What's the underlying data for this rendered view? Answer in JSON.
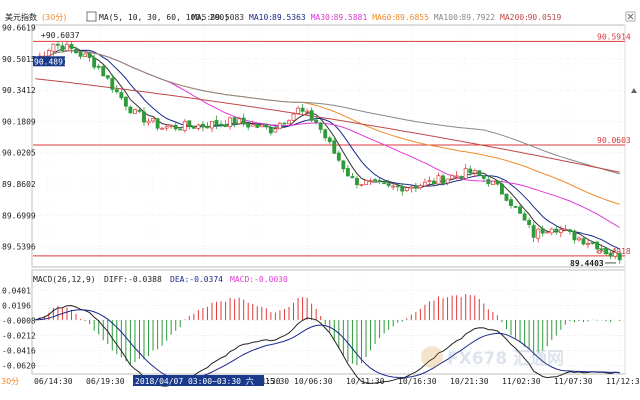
{
  "chart_data": {
    "type": "candlestick",
    "title": "美元指数",
    "period": "(30分)",
    "ma_header": "MA(5, 10, 30, 60, 100, 200)",
    "ma_values": [
      {
        "label": "MA5:",
        "value": "89.5083",
        "color": "#333333"
      },
      {
        "label": "MA10:",
        "value": "89.5363",
        "color": "#1a2a8c"
      },
      {
        "label": "MA30:",
        "value": "89.5881",
        "color": "#e03ad8"
      },
      {
        "label": "MA60:",
        "value": "89.6855",
        "color": "#f08a2a"
      },
      {
        "label": "MA100:",
        "value": "89.7922",
        "color": "#888888"
      },
      {
        "label": "MA200:",
        "value": "90.0519",
        "color": "#c04848"
      }
    ],
    "y_ticks": [
      "90.6619",
      "90.5015",
      "90.3412",
      "90.1809",
      "90.0205",
      "89.8602",
      "89.6999",
      "89.5396"
    ],
    "y_tick_values": [
      90.6619,
      90.5015,
      90.3412,
      90.1809,
      90.0205,
      89.8602,
      89.6999,
      89.5396
    ],
    "ylim": [
      89.44,
      90.67
    ],
    "annotations": {
      "high_label": "+90.6037",
      "high_value": 90.6037,
      "low_label": "89.4403",
      "low_value": 89.4403,
      "cursor_label": "90.4891",
      "cursor_value": 90.4891,
      "line_top_label": "90.5914",
      "line_top_value": 90.5914,
      "line_mid_label": "90.0603",
      "line_mid_value": 90.0603,
      "line_bot_label": "89.4918",
      "line_bot_value": 89.4918
    },
    "macd": {
      "header": "MACD(26,12,9)",
      "diff": "DIFF:-0.0388",
      "dea": "DEA:-0.0374",
      "macd": "MACD:-0.0030",
      "y_ticks": [
        "0.0401",
        "0.0196",
        "-0.0008",
        "-0.0212",
        "-0.0416",
        "-0.0620"
      ],
      "y_tick_values": [
        0.0401,
        0.0196,
        -0.0008,
        -0.0212,
        -0.0416,
        -0.062
      ],
      "ylim": [
        -0.072,
        0.046
      ]
    },
    "x_ticks": [
      "06/14:30",
      "06/19:30",
      "07/00",
      "09/20:30",
      "10/01:30",
      "10/06:30",
      "10/11:30",
      "10/16:30",
      "10/21:30",
      "11/02:30",
      "11/07:30",
      "11/12:30"
    ],
    "crosshair_time": "2018/04/07 03:00~03:30 六",
    "crosshair_suffix": "15:30",
    "bottom_left": "30分",
    "watermark": "FX678 汇通网",
    "n_bars": 130,
    "key_closes": [
      [
        0,
        90.49
      ],
      [
        4,
        90.58
      ],
      [
        8,
        90.55
      ],
      [
        12,
        90.5
      ],
      [
        14,
        90.46
      ],
      [
        18,
        90.33
      ],
      [
        22,
        90.22
      ],
      [
        28,
        90.15
      ],
      [
        36,
        90.16
      ],
      [
        44,
        90.18
      ],
      [
        52,
        90.14
      ],
      [
        58,
        90.24
      ],
      [
        62,
        90.18
      ],
      [
        66,
        90.02
      ],
      [
        70,
        89.88
      ],
      [
        78,
        89.84
      ],
      [
        86,
        89.86
      ],
      [
        92,
        89.9
      ],
      [
        96,
        89.92
      ],
      [
        100,
        89.88
      ],
      [
        104,
        89.8
      ],
      [
        110,
        89.6
      ],
      [
        114,
        89.65
      ],
      [
        118,
        89.6
      ],
      [
        124,
        89.55
      ],
      [
        127,
        89.5
      ],
      [
        129,
        89.49
      ]
    ]
  },
  "controls": {
    "ma_toggle_icon": "checkbox-icon",
    "close_icon": "close-icon",
    "arrow_icon": "arrow-up-icon"
  }
}
